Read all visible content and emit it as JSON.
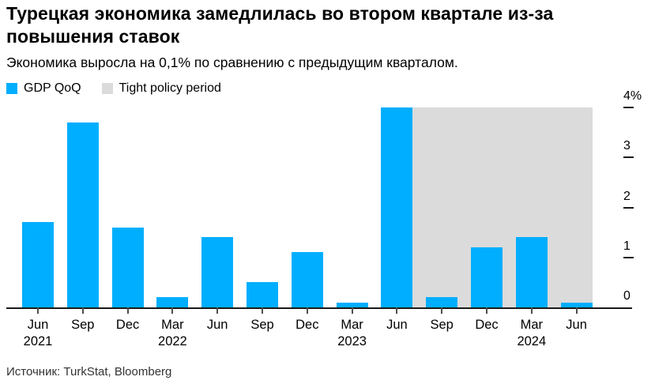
{
  "header": {
    "title": "Турецкая экономика замедлилась во втором квартале из-за повышения ставок",
    "subtitle": "Экономика выросла на 0,1% по сравнению с предыдущим кварталом."
  },
  "legend": {
    "items": [
      {
        "label": "GDP QoQ",
        "color": "#00AEFF"
      },
      {
        "label": "Tight policy period",
        "color": "#DBDBDB"
      }
    ]
  },
  "chart_data": {
    "type": "bar",
    "title": "Турецкая экономика замедлилась во втором квартале из-за повышения ставок",
    "subtitle": "Экономика выросла на 0,1% по сравнению с предыдущим кварталом.",
    "unit": "%",
    "series_name": "GDP QoQ",
    "categories": [
      "Jun 2021",
      "Sep 2021",
      "Dec 2021",
      "Mar 2022",
      "Jun 2022",
      "Sep 2022",
      "Dec 2022",
      "Mar 2023",
      "Jun 2023",
      "Sep 2023",
      "Dec 2023",
      "Mar 2024",
      "Jun 2024"
    ],
    "values": [
      1.7,
      3.7,
      1.6,
      0.2,
      1.4,
      0.5,
      1.1,
      0.1,
      4.0,
      0.2,
      1.2,
      1.4,
      0.1
    ],
    "x_tick_labels": [
      {
        "month": "Jun",
        "year": "2021"
      },
      {
        "month": "Sep",
        "year": ""
      },
      {
        "month": "Dec",
        "year": ""
      },
      {
        "month": "Mar",
        "year": "2022"
      },
      {
        "month": "Jun",
        "year": ""
      },
      {
        "month": "Sep",
        "year": ""
      },
      {
        "month": "Dec",
        "year": ""
      },
      {
        "month": "Mar",
        "year": "2023"
      },
      {
        "month": "Jun",
        "year": ""
      },
      {
        "month": "Sep",
        "year": ""
      },
      {
        "month": "Dec",
        "year": ""
      },
      {
        "month": "Mar",
        "year": "2024"
      },
      {
        "month": "Jun",
        "year": ""
      }
    ],
    "ylim": [
      0,
      4
    ],
    "yticks": [
      0,
      1,
      2,
      3,
      4
    ],
    "ytick_labels": [
      "0",
      "1",
      "2",
      "3",
      "4%"
    ],
    "y_axis_side": "right",
    "grid": false,
    "legend_position": "top-left",
    "highlight_region": {
      "label": "Tight policy period",
      "color": "#DBDBDB",
      "start_index": 8,
      "end_index": 12,
      "note": "shaded band from right edge of Jun 2023 bar to right edge of Jun 2024 bar, up to 4%",
      "top_value": 4.0
    },
    "colors": {
      "bar": "#00AEFF",
      "region": "#DBDBDB",
      "axis": "#1A1A1A"
    }
  },
  "footer": {
    "source": "Источник: TurkStat, Bloomberg"
  }
}
